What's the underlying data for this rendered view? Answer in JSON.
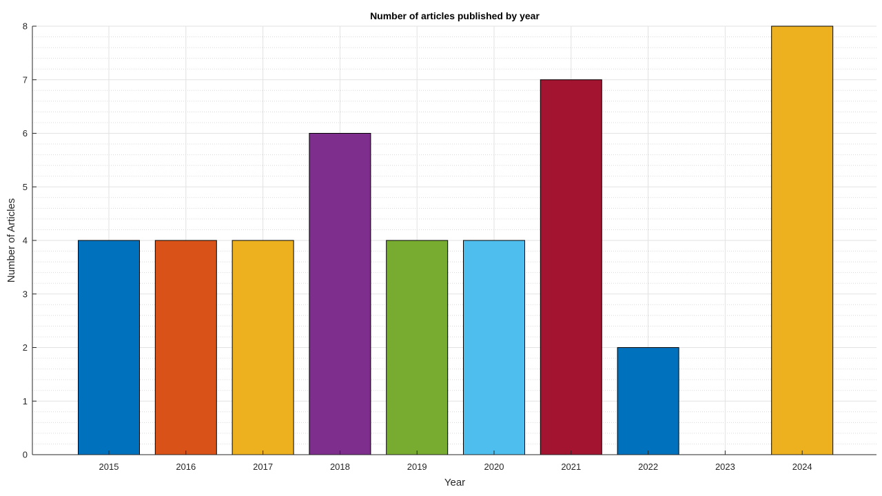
{
  "chart_data": {
    "type": "bar",
    "title": "Number of articles published by year",
    "xlabel": "Year",
    "ylabel": "Number of Articles",
    "categories": [
      "2015",
      "2016",
      "2017",
      "2018",
      "2019",
      "2020",
      "2021",
      "2022",
      "2023",
      "2024"
    ],
    "values": [
      4,
      4,
      4,
      6,
      4,
      4,
      7,
      2,
      0,
      8
    ],
    "bar_colors": [
      "#0072BD",
      "#D95319",
      "#EDB120",
      "#7E2F8E",
      "#77AC30",
      "#4DBEEE",
      "#A2142F",
      "#0072BD",
      "#D95319",
      "#EDB120"
    ],
    "ylim": [
      0,
      8
    ],
    "yticks": [
      0,
      1,
      2,
      3,
      4,
      5,
      6,
      7,
      8
    ],
    "grid": true,
    "minor_grid": true,
    "legend": "none"
  }
}
